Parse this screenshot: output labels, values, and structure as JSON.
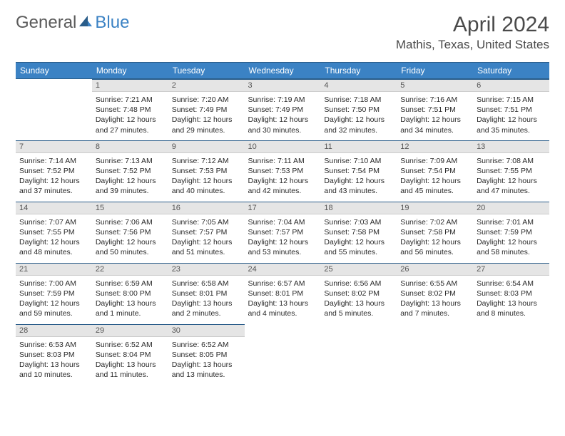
{
  "logo": {
    "part1": "General",
    "part2": "Blue"
  },
  "title": "April 2024",
  "location": "Mathis, Texas, United States",
  "header_bg": "#3b82c4",
  "header_border": "#2a5d8a",
  "daynum_bg": "#e5e5e5",
  "weekdays": [
    "Sunday",
    "Monday",
    "Tuesday",
    "Wednesday",
    "Thursday",
    "Friday",
    "Saturday"
  ],
  "weeks": [
    [
      null,
      {
        "n": "1",
        "sr": "Sunrise: 7:21 AM",
        "ss": "Sunset: 7:48 PM",
        "d1": "Daylight: 12 hours",
        "d2": "and 27 minutes."
      },
      {
        "n": "2",
        "sr": "Sunrise: 7:20 AM",
        "ss": "Sunset: 7:49 PM",
        "d1": "Daylight: 12 hours",
        "d2": "and 29 minutes."
      },
      {
        "n": "3",
        "sr": "Sunrise: 7:19 AM",
        "ss": "Sunset: 7:49 PM",
        "d1": "Daylight: 12 hours",
        "d2": "and 30 minutes."
      },
      {
        "n": "4",
        "sr": "Sunrise: 7:18 AM",
        "ss": "Sunset: 7:50 PM",
        "d1": "Daylight: 12 hours",
        "d2": "and 32 minutes."
      },
      {
        "n": "5",
        "sr": "Sunrise: 7:16 AM",
        "ss": "Sunset: 7:51 PM",
        "d1": "Daylight: 12 hours",
        "d2": "and 34 minutes."
      },
      {
        "n": "6",
        "sr": "Sunrise: 7:15 AM",
        "ss": "Sunset: 7:51 PM",
        "d1": "Daylight: 12 hours",
        "d2": "and 35 minutes."
      }
    ],
    [
      {
        "n": "7",
        "sr": "Sunrise: 7:14 AM",
        "ss": "Sunset: 7:52 PM",
        "d1": "Daylight: 12 hours",
        "d2": "and 37 minutes."
      },
      {
        "n": "8",
        "sr": "Sunrise: 7:13 AM",
        "ss": "Sunset: 7:52 PM",
        "d1": "Daylight: 12 hours",
        "d2": "and 39 minutes."
      },
      {
        "n": "9",
        "sr": "Sunrise: 7:12 AM",
        "ss": "Sunset: 7:53 PM",
        "d1": "Daylight: 12 hours",
        "d2": "and 40 minutes."
      },
      {
        "n": "10",
        "sr": "Sunrise: 7:11 AM",
        "ss": "Sunset: 7:53 PM",
        "d1": "Daylight: 12 hours",
        "d2": "and 42 minutes."
      },
      {
        "n": "11",
        "sr": "Sunrise: 7:10 AM",
        "ss": "Sunset: 7:54 PM",
        "d1": "Daylight: 12 hours",
        "d2": "and 43 minutes."
      },
      {
        "n": "12",
        "sr": "Sunrise: 7:09 AM",
        "ss": "Sunset: 7:54 PM",
        "d1": "Daylight: 12 hours",
        "d2": "and 45 minutes."
      },
      {
        "n": "13",
        "sr": "Sunrise: 7:08 AM",
        "ss": "Sunset: 7:55 PM",
        "d1": "Daylight: 12 hours",
        "d2": "and 47 minutes."
      }
    ],
    [
      {
        "n": "14",
        "sr": "Sunrise: 7:07 AM",
        "ss": "Sunset: 7:55 PM",
        "d1": "Daylight: 12 hours",
        "d2": "and 48 minutes."
      },
      {
        "n": "15",
        "sr": "Sunrise: 7:06 AM",
        "ss": "Sunset: 7:56 PM",
        "d1": "Daylight: 12 hours",
        "d2": "and 50 minutes."
      },
      {
        "n": "16",
        "sr": "Sunrise: 7:05 AM",
        "ss": "Sunset: 7:57 PM",
        "d1": "Daylight: 12 hours",
        "d2": "and 51 minutes."
      },
      {
        "n": "17",
        "sr": "Sunrise: 7:04 AM",
        "ss": "Sunset: 7:57 PM",
        "d1": "Daylight: 12 hours",
        "d2": "and 53 minutes."
      },
      {
        "n": "18",
        "sr": "Sunrise: 7:03 AM",
        "ss": "Sunset: 7:58 PM",
        "d1": "Daylight: 12 hours",
        "d2": "and 55 minutes."
      },
      {
        "n": "19",
        "sr": "Sunrise: 7:02 AM",
        "ss": "Sunset: 7:58 PM",
        "d1": "Daylight: 12 hours",
        "d2": "and 56 minutes."
      },
      {
        "n": "20",
        "sr": "Sunrise: 7:01 AM",
        "ss": "Sunset: 7:59 PM",
        "d1": "Daylight: 12 hours",
        "d2": "and 58 minutes."
      }
    ],
    [
      {
        "n": "21",
        "sr": "Sunrise: 7:00 AM",
        "ss": "Sunset: 7:59 PM",
        "d1": "Daylight: 12 hours",
        "d2": "and 59 minutes."
      },
      {
        "n": "22",
        "sr": "Sunrise: 6:59 AM",
        "ss": "Sunset: 8:00 PM",
        "d1": "Daylight: 13 hours",
        "d2": "and 1 minute."
      },
      {
        "n": "23",
        "sr": "Sunrise: 6:58 AM",
        "ss": "Sunset: 8:01 PM",
        "d1": "Daylight: 13 hours",
        "d2": "and 2 minutes."
      },
      {
        "n": "24",
        "sr": "Sunrise: 6:57 AM",
        "ss": "Sunset: 8:01 PM",
        "d1": "Daylight: 13 hours",
        "d2": "and 4 minutes."
      },
      {
        "n": "25",
        "sr": "Sunrise: 6:56 AM",
        "ss": "Sunset: 8:02 PM",
        "d1": "Daylight: 13 hours",
        "d2": "and 5 minutes."
      },
      {
        "n": "26",
        "sr": "Sunrise: 6:55 AM",
        "ss": "Sunset: 8:02 PM",
        "d1": "Daylight: 13 hours",
        "d2": "and 7 minutes."
      },
      {
        "n": "27",
        "sr": "Sunrise: 6:54 AM",
        "ss": "Sunset: 8:03 PM",
        "d1": "Daylight: 13 hours",
        "d2": "and 8 minutes."
      }
    ],
    [
      {
        "n": "28",
        "sr": "Sunrise: 6:53 AM",
        "ss": "Sunset: 8:03 PM",
        "d1": "Daylight: 13 hours",
        "d2": "and 10 minutes."
      },
      {
        "n": "29",
        "sr": "Sunrise: 6:52 AM",
        "ss": "Sunset: 8:04 PM",
        "d1": "Daylight: 13 hours",
        "d2": "and 11 minutes."
      },
      {
        "n": "30",
        "sr": "Sunrise: 6:52 AM",
        "ss": "Sunset: 8:05 PM",
        "d1": "Daylight: 13 hours",
        "d2": "and 13 minutes."
      },
      null,
      null,
      null,
      null
    ]
  ]
}
